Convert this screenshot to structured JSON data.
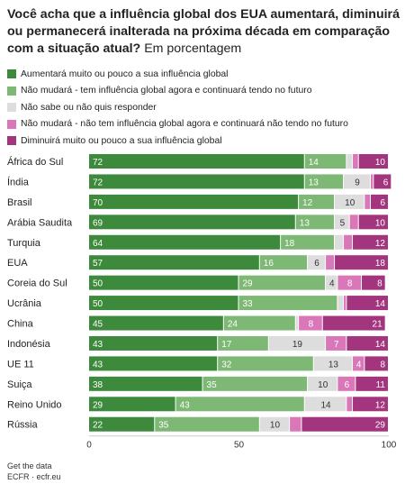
{
  "title_bold": "Você acha que a influência global dos EUA aumentará, diminuirá ou permanecerá inalterada na próxima década em comparação com a situação atual?",
  "title_sub": "Em porcentagem",
  "colors": {
    "increase": "#3d8a3d",
    "no_change_has": "#7db874",
    "dont_know": "#dddddd",
    "no_change_none": "#d977b9",
    "decrease": "#a2357e"
  },
  "chart_data": {
    "type": "bar",
    "orientation": "horizontal",
    "stacked": true,
    "xlim": [
      0,
      100
    ],
    "x_ticks": [
      "0",
      "50",
      "100"
    ],
    "legend_position": "top",
    "series": [
      {
        "name": "Aumentará muito ou pouco a sua influência global",
        "key": "increase"
      },
      {
        "name": "Não mudará - tem influência global agora e continuará tendo no futuro",
        "key": "no_change_has"
      },
      {
        "name": "Não sabe ou não quis responder",
        "key": "dont_know"
      },
      {
        "name": "Não mudará - não tem influência global agora e continuará não tendo no futuro",
        "key": "no_change_none"
      },
      {
        "name": "Diminuirá muito ou pouco a sua influência global",
        "key": "decrease"
      }
    ],
    "rows": [
      {
        "category": "África do Sul",
        "values": [
          72,
          14,
          2,
          2,
          10
        ],
        "labels": [
          "72",
          "14",
          "",
          "",
          "10"
        ]
      },
      {
        "category": "Índia",
        "values": [
          72,
          13,
          9,
          1,
          6
        ],
        "labels": [
          "72",
          "13",
          "9",
          "",
          "6"
        ]
      },
      {
        "category": "Brasil",
        "values": [
          70,
          12,
          10,
          2,
          6
        ],
        "labels": [
          "70",
          "12",
          "10",
          "",
          "6"
        ]
      },
      {
        "category": "Arábia Saudita",
        "values": [
          69,
          13,
          5,
          3,
          10
        ],
        "labels": [
          "69",
          "13",
          "5",
          "",
          "10"
        ]
      },
      {
        "category": "Turquia",
        "values": [
          64,
          18,
          3,
          3,
          12
        ],
        "labels": [
          "64",
          "18",
          "",
          "",
          "12"
        ]
      },
      {
        "category": "EUA",
        "values": [
          57,
          16,
          6,
          3,
          18
        ],
        "labels": [
          "57",
          "16",
          "6",
          "",
          "18"
        ]
      },
      {
        "category": "Coreia do Sul",
        "values": [
          50,
          29,
          4,
          8,
          8
        ],
        "labels": [
          "50",
          "29",
          "4",
          "8",
          "8"
        ]
      },
      {
        "category": "Ucrânia",
        "values": [
          50,
          33,
          2,
          1,
          14
        ],
        "labels": [
          "50",
          "33",
          "",
          "",
          "14"
        ]
      },
      {
        "category": "China",
        "values": [
          45,
          24,
          1,
          8,
          21
        ],
        "labels": [
          "45",
          "24",
          "",
          "8",
          "21"
        ]
      },
      {
        "category": "Indonésia",
        "values": [
          43,
          17,
          19,
          7,
          14
        ],
        "labels": [
          "43",
          "17",
          "19",
          "7",
          "14"
        ]
      },
      {
        "category": "UE 11",
        "values": [
          43,
          32,
          13,
          4,
          8
        ],
        "labels": [
          "43",
          "32",
          "13",
          "4",
          "8"
        ]
      },
      {
        "category": "Suiça",
        "values": [
          38,
          35,
          10,
          6,
          11
        ],
        "labels": [
          "38",
          "35",
          "10",
          "6",
          "11"
        ]
      },
      {
        "category": "Reino Unido",
        "values": [
          29,
          43,
          14,
          2,
          12
        ],
        "labels": [
          "29",
          "43",
          "14",
          "",
          "12"
        ]
      },
      {
        "category": "Rússia",
        "values": [
          22,
          35,
          10,
          4,
          29
        ],
        "labels": [
          "22",
          "35",
          "10",
          "",
          "29"
        ]
      }
    ]
  },
  "footer": {
    "line1": "Get the data",
    "line2": "ECFR · ecfr.eu"
  }
}
